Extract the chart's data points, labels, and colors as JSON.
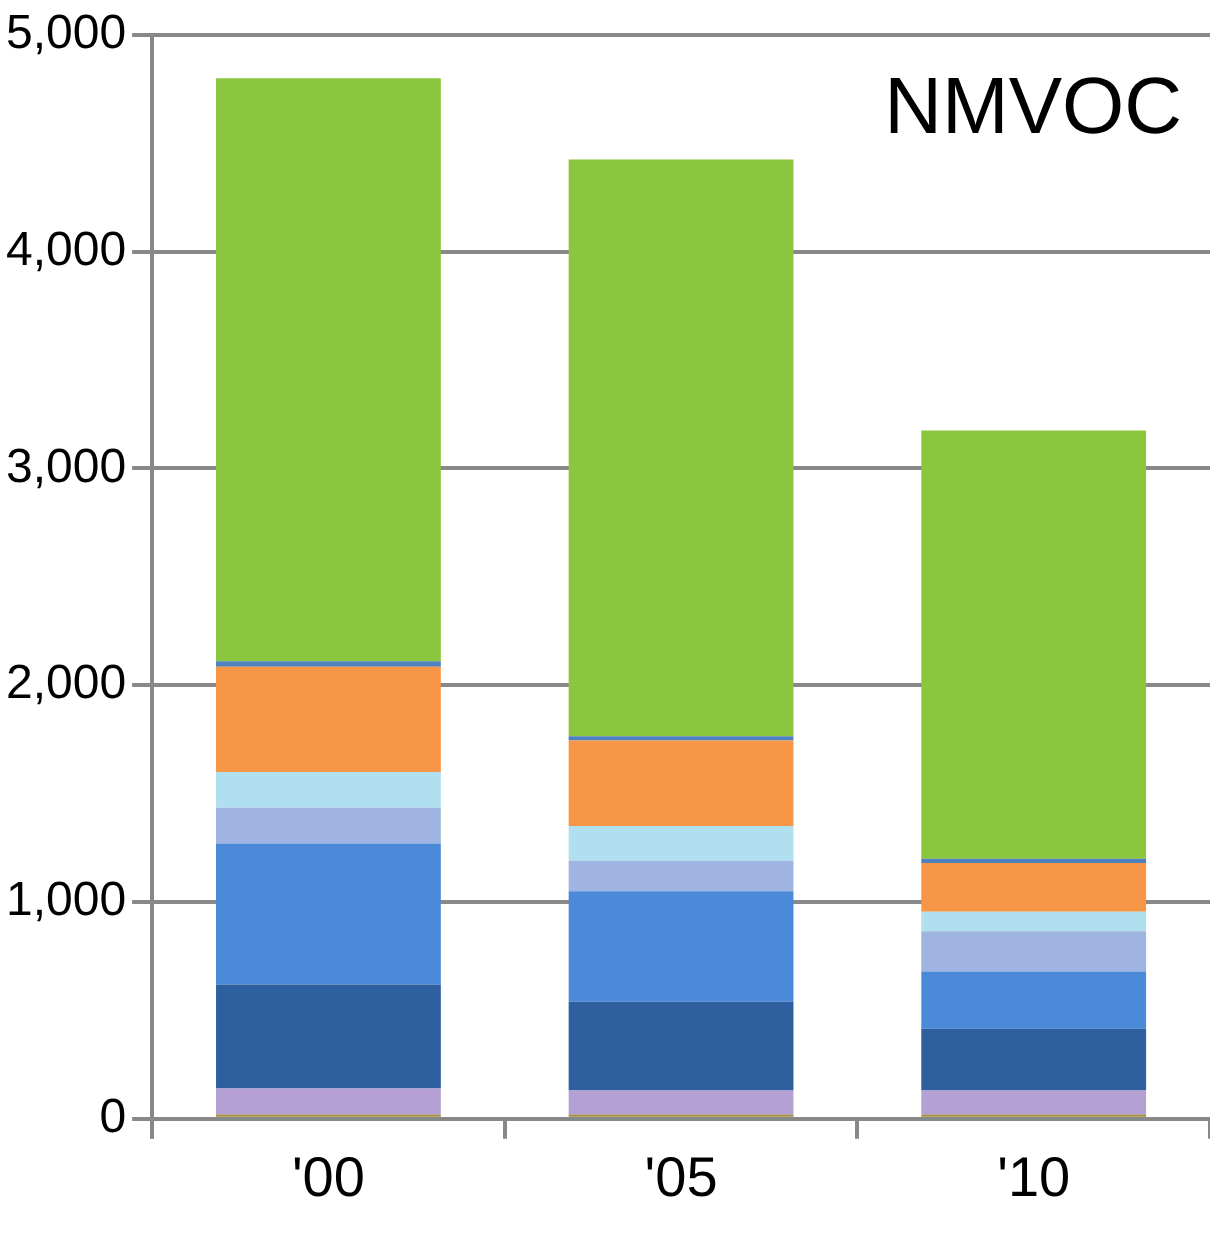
{
  "chart_data": {
    "type": "bar",
    "title": "NMVOC",
    "stacked": true,
    "grid": "y",
    "categories": [
      "'00",
      "'05",
      "'10"
    ],
    "ylim": [
      0,
      5000
    ],
    "yticks": [
      0,
      {
        "value": 1000,
        "label": "1,000"
      },
      {
        "value": 2000,
        "label": "2,000"
      },
      {
        "value": 3000,
        "label": "3,000"
      },
      {
        "value": 4000,
        "label": "4,000"
      },
      {
        "value": 5000,
        "label": "5,000"
      }
    ],
    "series": [
      {
        "color": "#a08c3c",
        "values": [
          20,
          20,
          20
        ]
      },
      {
        "color": "#b4a0d2",
        "values": [
          120,
          110,
          110
        ]
      },
      {
        "color": "#2e5f9e",
        "values": [
          480,
          410,
          285
        ]
      },
      {
        "color": "#4a8ad8",
        "values": [
          650,
          510,
          265
        ]
      },
      {
        "color": "#9fb4e0",
        "values": [
          165,
          140,
          185
        ]
      },
      {
        "color": "#b0dff0",
        "values": [
          165,
          160,
          90
        ]
      },
      {
        "color": "#f79646",
        "values": [
          485,
          395,
          225
        ]
      },
      {
        "color": "#4f81bd",
        "values": [
          25,
          20,
          20
        ]
      },
      {
        "color": "#8cc63f",
        "values": [
          2690,
          2660,
          1975
        ]
      }
    ]
  }
}
